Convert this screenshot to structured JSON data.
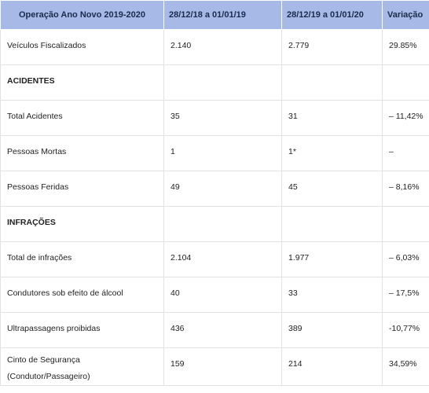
{
  "table": {
    "headers": [
      "Operação Ano Novo 2019-2020",
      "28/12/18 a 01/01/19",
      "28/12/19 a 01/01/20",
      "Variação"
    ],
    "rows": [
      {
        "label": "Veículos Fiscalizados",
        "v2019": "2.140",
        "v2020": "2.779",
        "variation": "29.85%"
      },
      {
        "label": "ACIDENTES",
        "v2019": "",
        "v2020": "",
        "variation": ""
      },
      {
        "label": "Total Acidentes",
        "v2019": "35",
        "v2020": "31",
        "variation": "– 11,42%"
      },
      {
        "label": "Pessoas Mortas",
        "v2019": "1",
        "v2020": "1*",
        "variation": "–"
      },
      {
        "label": "Pessoas Feridas",
        "v2019": "49",
        "v2020": "45",
        "variation": "– 8,16%"
      },
      {
        "label": "INFRAÇÕES",
        "v2019": "",
        "v2020": "",
        "variation": ""
      },
      {
        "label": "Total de infrações",
        "v2019": "2.104",
        "v2020": "1.977",
        "variation": "– 6,03%"
      },
      {
        "label": "Condutores sob efeito de álcool",
        "v2019": "40",
        "v2020": "33",
        "variation": "– 17,5%"
      },
      {
        "label": "Ultrapassagens proibidas",
        "v2019": "436",
        "v2020": "389",
        "variation": "-10,77%"
      },
      {
        "label": "Cinto de Segurança (Condutor/Passageiro)",
        "v2019": "159",
        "v2020": "214",
        "variation": "34,59%"
      }
    ]
  }
}
